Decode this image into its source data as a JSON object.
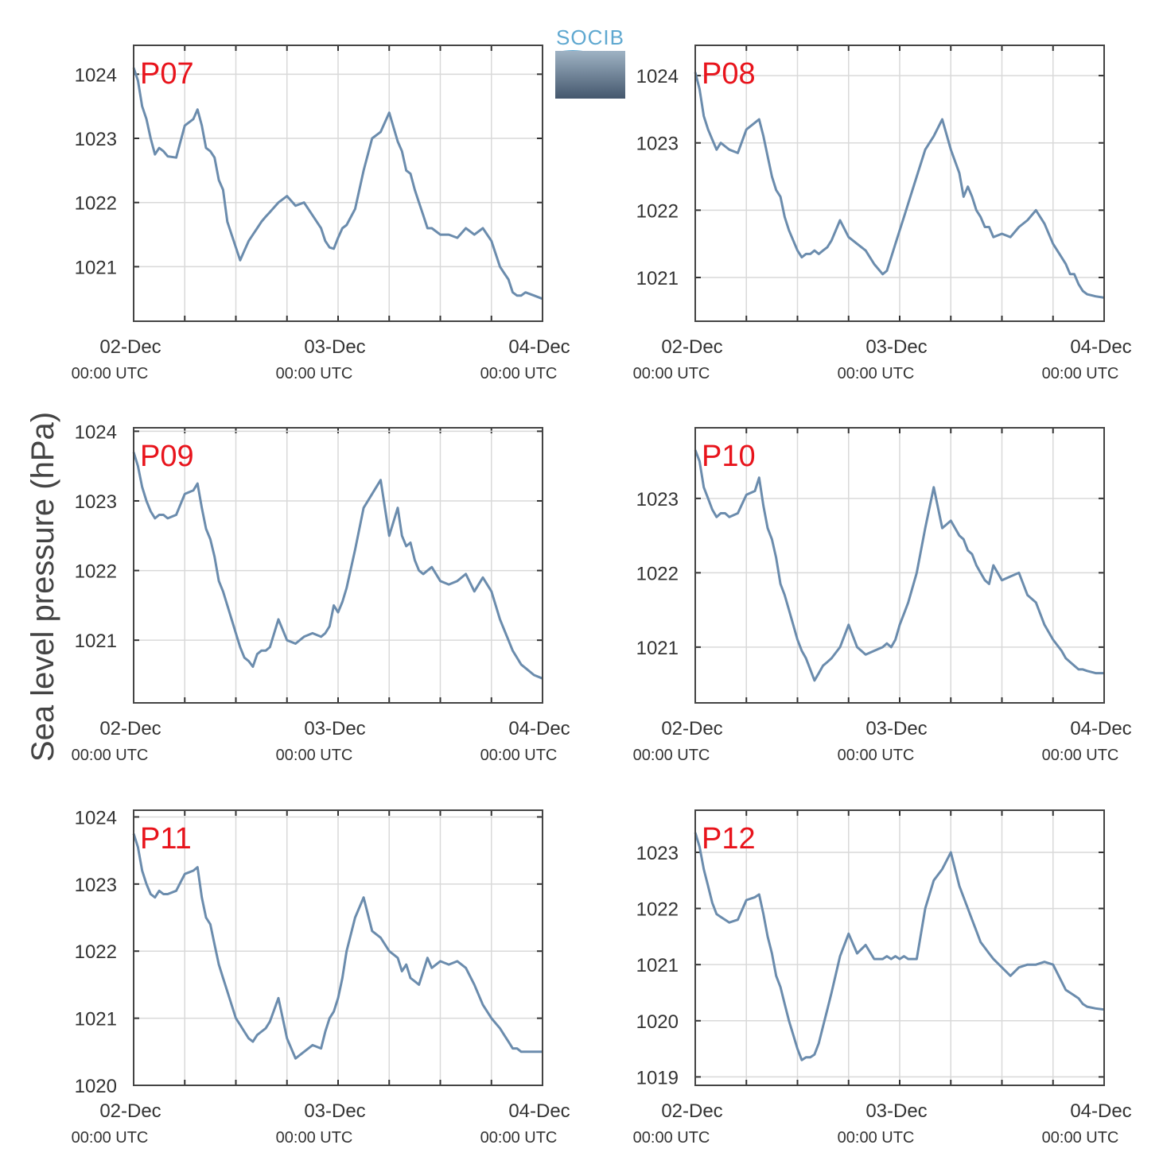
{
  "figure": {
    "ylabel": "Sea level pressure (hPa)",
    "line_color": "#6b8cad",
    "station_label_color": "#e8141c",
    "logo_text": "SOCIB"
  },
  "chart_data": [
    {
      "type": "line",
      "station": "P07",
      "x_tick_labels": [
        "02-Dec",
        "03-Dec",
        "04-Dec"
      ],
      "x_tick_sublabels": [
        "00:00 UTC",
        "00:00 UTC",
        "00:00 UTC"
      ],
      "x_unit": "hours since 02-Dec 00:00 UTC",
      "xlim": [
        0,
        48
      ],
      "ylim": [
        1020.15,
        1024.45
      ],
      "yticks": [
        1021,
        1022,
        1023,
        1024
      ],
      "grid": true,
      "series": [
        {
          "x": [
            0,
            0.5,
            1,
            1.5,
            2,
            2.5,
            3,
            3.5,
            4,
            5,
            6,
            7,
            7.5,
            8,
            8.5,
            9,
            9.5,
            10,
            10.5,
            11,
            12,
            12.5,
            13,
            13.5,
            14,
            14.5,
            15,
            15.5,
            16,
            17,
            18,
            19,
            20,
            21,
            22,
            22.5,
            23,
            23.5,
            24,
            24.5,
            25,
            26,
            27,
            28,
            29,
            30,
            31,
            31.5,
            32,
            32.5,
            33,
            33.5,
            34,
            34.5,
            35,
            36,
            37,
            38,
            39,
            40,
            41,
            42,
            43,
            43.5,
            44,
            44.5,
            45,
            45.5,
            46,
            47,
            48
          ],
          "y": [
            1024.1,
            1023.9,
            1023.5,
            1023.3,
            1023.0,
            1022.75,
            1022.85,
            1022.8,
            1022.72,
            1022.7,
            1023.2,
            1023.3,
            1023.45,
            1023.2,
            1022.85,
            1022.8,
            1022.7,
            1022.35,
            1022.2,
            1021.7,
            1021.3,
            1021.1,
            1021.25,
            1021.4,
            1021.5,
            1021.6,
            1021.7,
            1021.78,
            1021.85,
            1022.0,
            1022.1,
            1021.95,
            1022.0,
            1021.8,
            1021.6,
            1021.4,
            1021.3,
            1021.28,
            1021.45,
            1021.6,
            1021.65,
            1021.9,
            1022.5,
            1023.0,
            1023.1,
            1023.4,
            1022.95,
            1022.8,
            1022.5,
            1022.45,
            1022.2,
            1022.0,
            1021.8,
            1021.6,
            1021.6,
            1021.5,
            1021.5,
            1021.45,
            1021.6,
            1021.5,
            1021.6,
            1021.4,
            1021.0,
            1020.9,
            1020.8,
            1020.6,
            1020.55,
            1020.55,
            1020.6,
            1020.55,
            1020.5
          ]
        }
      ]
    },
    {
      "type": "line",
      "station": "P08",
      "x_tick_labels": [
        "02-Dec",
        "03-Dec",
        "04-Dec"
      ],
      "x_tick_sublabels": [
        "00:00 UTC",
        "00:00 UTC",
        "00:00 UTC"
      ],
      "x_unit": "hours since 02-Dec 00:00 UTC",
      "xlim": [
        0,
        48
      ],
      "ylim": [
        1020.35,
        1024.45
      ],
      "yticks": [
        1021,
        1022,
        1023,
        1024
      ],
      "grid": true,
      "series": [
        {
          "x": [
            0,
            0.5,
            1,
            1.5,
            2,
            2.5,
            3,
            3.5,
            4,
            5,
            6,
            7,
            7.5,
            8,
            8.5,
            9,
            9.5,
            10,
            10.5,
            11,
            12,
            12.5,
            13,
            13.5,
            14,
            14.5,
            15,
            15.5,
            16,
            17,
            18,
            19,
            20,
            21,
            22,
            22.5,
            23,
            23.5,
            24,
            24.5,
            25,
            26,
            27,
            28,
            29,
            30,
            31,
            31.5,
            32,
            32.5,
            33,
            33.5,
            34,
            34.5,
            35,
            36,
            37,
            38,
            39,
            40,
            41,
            42,
            43,
            43.5,
            44,
            44.5,
            45,
            45.5,
            46,
            47,
            48
          ],
          "y": [
            1024.05,
            1023.8,
            1023.4,
            1023.2,
            1023.05,
            1022.9,
            1023.0,
            1022.95,
            1022.9,
            1022.85,
            1023.2,
            1023.3,
            1023.35,
            1023.1,
            1022.8,
            1022.5,
            1022.3,
            1022.2,
            1021.9,
            1021.7,
            1021.4,
            1021.3,
            1021.35,
            1021.35,
            1021.4,
            1021.35,
            1021.4,
            1021.45,
            1021.55,
            1021.85,
            1021.6,
            1021.5,
            1021.4,
            1021.2,
            1021.05,
            1021.1,
            1021.3,
            1021.5,
            1021.7,
            1021.9,
            1022.1,
            1022.5,
            1022.9,
            1023.1,
            1023.35,
            1022.9,
            1022.55,
            1022.2,
            1022.35,
            1022.2,
            1022.0,
            1021.9,
            1021.75,
            1021.75,
            1021.6,
            1021.65,
            1021.6,
            1021.75,
            1021.85,
            1022.0,
            1021.8,
            1021.5,
            1021.3,
            1021.2,
            1021.05,
            1021.05,
            1020.9,
            1020.8,
            1020.75,
            1020.72,
            1020.7
          ]
        }
      ]
    },
    {
      "type": "line",
      "station": "P09",
      "x_tick_labels": [
        "02-Dec",
        "03-Dec",
        "04-Dec"
      ],
      "x_tick_sublabels": [
        "00:00 UTC",
        "00:00 UTC",
        "00:00 UTC"
      ],
      "x_unit": "hours since 02-Dec 00:00 UTC",
      "xlim": [
        0,
        48
      ],
      "ylim": [
        1020.1,
        1024.05
      ],
      "yticks": [
        1021,
        1022,
        1023,
        1024
      ],
      "grid": true,
      "series": [
        {
          "x": [
            0,
            0.5,
            1,
            1.5,
            2,
            2.5,
            3,
            3.5,
            4,
            5,
            6,
            7,
            7.5,
            8,
            8.5,
            9,
            9.5,
            10,
            10.5,
            11,
            12,
            12.5,
            13,
            13.5,
            14,
            14.5,
            15,
            15.5,
            16,
            17,
            18,
            19,
            20,
            21,
            22,
            22.5,
            23,
            23.5,
            24,
            24.5,
            25,
            26,
            27,
            28,
            29,
            30,
            31,
            31.5,
            32,
            32.5,
            33,
            33.5,
            34,
            34.5,
            35,
            36,
            37,
            38,
            39,
            40,
            41,
            42,
            43,
            43.5,
            44,
            44.5,
            45,
            45.5,
            46,
            47,
            48
          ],
          "y": [
            1023.7,
            1023.5,
            1023.2,
            1023.0,
            1022.85,
            1022.75,
            1022.8,
            1022.8,
            1022.75,
            1022.8,
            1023.1,
            1023.15,
            1023.25,
            1022.9,
            1022.6,
            1022.45,
            1022.2,
            1021.85,
            1021.7,
            1021.5,
            1021.1,
            1020.9,
            1020.75,
            1020.7,
            1020.62,
            1020.8,
            1020.85,
            1020.85,
            1020.9,
            1021.3,
            1021.0,
            1020.95,
            1021.05,
            1021.1,
            1021.05,
            1021.1,
            1021.2,
            1021.5,
            1021.4,
            1021.55,
            1021.75,
            1022.3,
            1022.9,
            1023.1,
            1023.3,
            1022.5,
            1022.9,
            1022.5,
            1022.35,
            1022.4,
            1022.15,
            1022.0,
            1021.95,
            1022.0,
            1022.05,
            1021.85,
            1021.8,
            1021.85,
            1021.95,
            1021.7,
            1021.9,
            1021.7,
            1021.3,
            1021.15,
            1021.0,
            1020.85,
            1020.75,
            1020.65,
            1020.6,
            1020.5,
            1020.45
          ]
        }
      ]
    },
    {
      "type": "line",
      "station": "P10",
      "x_tick_labels": [
        "02-Dec",
        "03-Dec",
        "04-Dec"
      ],
      "x_tick_sublabels": [
        "00:00 UTC",
        "00:00 UTC",
        "00:00 UTC"
      ],
      "x_unit": "hours since 02-Dec 00:00 UTC",
      "xlim": [
        0,
        48
      ],
      "ylim": [
        1020.25,
        1023.95
      ],
      "yticks": [
        1021,
        1022,
        1023
      ],
      "grid": true,
      "series": [
        {
          "x": [
            0,
            0.5,
            1,
            1.5,
            2,
            2.5,
            3,
            3.5,
            4,
            5,
            6,
            7,
            7.5,
            8,
            8.5,
            9,
            9.5,
            10,
            10.5,
            11,
            12,
            12.5,
            13,
            13.5,
            14,
            14.5,
            15,
            15.5,
            16,
            17,
            18,
            19,
            20,
            21,
            22,
            22.5,
            23,
            23.5,
            24,
            24.5,
            25,
            26,
            27,
            28,
            29,
            30,
            31,
            31.5,
            32,
            32.5,
            33,
            33.5,
            34,
            34.5,
            35,
            36,
            37,
            38,
            39,
            40,
            41,
            42,
            43,
            43.5,
            44,
            44.5,
            45,
            45.5,
            46,
            47,
            48
          ],
          "y": [
            1023.65,
            1023.5,
            1023.15,
            1023.0,
            1022.85,
            1022.75,
            1022.8,
            1022.8,
            1022.75,
            1022.8,
            1023.05,
            1023.1,
            1023.28,
            1022.9,
            1022.6,
            1022.45,
            1022.2,
            1021.85,
            1021.7,
            1021.5,
            1021.1,
            1020.95,
            1020.85,
            1020.7,
            1020.55,
            1020.65,
            1020.75,
            1020.8,
            1020.85,
            1021.0,
            1021.3,
            1021.0,
            1020.9,
            1020.95,
            1021.0,
            1021.05,
            1021.0,
            1021.1,
            1021.3,
            1021.45,
            1021.6,
            1022.0,
            1022.6,
            1023.15,
            1022.6,
            1022.7,
            1022.5,
            1022.45,
            1022.3,
            1022.25,
            1022.1,
            1022.0,
            1021.9,
            1021.85,
            1022.1,
            1021.9,
            1021.95,
            1022.0,
            1021.7,
            1021.6,
            1021.3,
            1021.1,
            1020.95,
            1020.85,
            1020.8,
            1020.75,
            1020.7,
            1020.7,
            1020.68,
            1020.65,
            1020.65
          ]
        }
      ]
    },
    {
      "type": "line",
      "station": "P11",
      "x_tick_labels": [
        "02-Dec",
        "03-Dec",
        "04-Dec"
      ],
      "x_tick_sublabels": [
        "00:00 UTC",
        "00:00 UTC",
        "00:00 UTC"
      ],
      "x_unit": "hours since 02-Dec 00:00 UTC",
      "xlim": [
        0,
        48
      ],
      "ylim": [
        1020.0,
        1024.1
      ],
      "yticks": [
        1020,
        1021,
        1022,
        1023,
        1024
      ],
      "grid": true,
      "series": [
        {
          "x": [
            0,
            0.5,
            1,
            1.5,
            2,
            2.5,
            3,
            3.5,
            4,
            5,
            6,
            7,
            7.5,
            8,
            8.5,
            9,
            9.5,
            10,
            10.5,
            11,
            12,
            12.5,
            13,
            13.5,
            14,
            14.5,
            15,
            15.5,
            16,
            17,
            18,
            19,
            20,
            21,
            22,
            22.5,
            23,
            23.5,
            24,
            24.5,
            25,
            26,
            27,
            28,
            29,
            30,
            31,
            31.5,
            32,
            32.5,
            33,
            33.5,
            34,
            34.5,
            35,
            36,
            37,
            38,
            39,
            40,
            41,
            42,
            43,
            43.5,
            44,
            44.5,
            45,
            45.5,
            46,
            47,
            48
          ],
          "y": [
            1023.75,
            1023.55,
            1023.2,
            1023.0,
            1022.85,
            1022.8,
            1022.9,
            1022.85,
            1022.85,
            1022.9,
            1023.15,
            1023.2,
            1023.25,
            1022.8,
            1022.5,
            1022.4,
            1022.1,
            1021.8,
            1021.6,
            1021.4,
            1021.0,
            1020.9,
            1020.8,
            1020.7,
            1020.65,
            1020.75,
            1020.8,
            1020.85,
            1020.95,
            1021.3,
            1020.7,
            1020.4,
            1020.5,
            1020.6,
            1020.55,
            1020.8,
            1021.0,
            1021.1,
            1021.3,
            1021.6,
            1022.0,
            1022.5,
            1022.8,
            1022.3,
            1022.2,
            1022.0,
            1021.9,
            1021.7,
            1021.8,
            1021.6,
            1021.55,
            1021.5,
            1021.7,
            1021.9,
            1021.75,
            1021.85,
            1021.8,
            1021.85,
            1021.75,
            1021.5,
            1021.2,
            1021.0,
            1020.85,
            1020.75,
            1020.65,
            1020.55,
            1020.55,
            1020.5,
            1020.5,
            1020.5,
            1020.5
          ]
        }
      ]
    },
    {
      "type": "line",
      "station": "P12",
      "x_tick_labels": [
        "02-Dec",
        "03-Dec",
        "04-Dec"
      ],
      "x_tick_sublabels": [
        "00:00 UTC",
        "00:00 UTC",
        "00:00 UTC"
      ],
      "x_unit": "hours since 02-Dec 00:00 UTC",
      "xlim": [
        0,
        48
      ],
      "ylim": [
        1018.85,
        1023.75
      ],
      "yticks": [
        1019,
        1020,
        1021,
        1022,
        1023
      ],
      "grid": true,
      "series": [
        {
          "x": [
            0,
            0.5,
            1,
            1.5,
            2,
            2.5,
            3,
            3.5,
            4,
            5,
            6,
            7,
            7.5,
            8,
            8.5,
            9,
            9.5,
            10,
            10.5,
            11,
            12,
            12.5,
            13,
            13.5,
            14,
            14.5,
            15,
            15.5,
            16,
            17,
            18,
            19,
            20,
            21,
            22,
            22.5,
            23,
            23.5,
            24,
            24.5,
            25,
            26,
            27,
            28,
            29,
            30,
            31,
            31.5,
            32,
            32.5,
            33,
            33.5,
            34,
            34.5,
            35,
            36,
            37,
            38,
            39,
            40,
            41,
            42,
            43,
            43.5,
            44,
            44.5,
            45,
            45.5,
            46,
            47,
            48
          ],
          "y": [
            1023.35,
            1023.1,
            1022.7,
            1022.4,
            1022.1,
            1021.9,
            1021.85,
            1021.8,
            1021.75,
            1021.8,
            1022.15,
            1022.2,
            1022.25,
            1021.9,
            1021.5,
            1021.2,
            1020.8,
            1020.6,
            1020.3,
            1020.0,
            1019.5,
            1019.3,
            1019.35,
            1019.35,
            1019.4,
            1019.6,
            1019.9,
            1020.2,
            1020.5,
            1021.15,
            1021.55,
            1021.2,
            1021.35,
            1021.1,
            1021.1,
            1021.15,
            1021.1,
            1021.15,
            1021.1,
            1021.15,
            1021.1,
            1021.1,
            1022.0,
            1022.5,
            1022.7,
            1023.0,
            1022.4,
            1022.2,
            1022.0,
            1021.8,
            1021.6,
            1021.4,
            1021.3,
            1021.2,
            1021.1,
            1020.95,
            1020.8,
            1020.95,
            1021.0,
            1021.0,
            1021.05,
            1021.0,
            1020.7,
            1020.55,
            1020.5,
            1020.45,
            1020.4,
            1020.3,
            1020.25,
            1020.22,
            1020.2
          ]
        }
      ]
    }
  ]
}
